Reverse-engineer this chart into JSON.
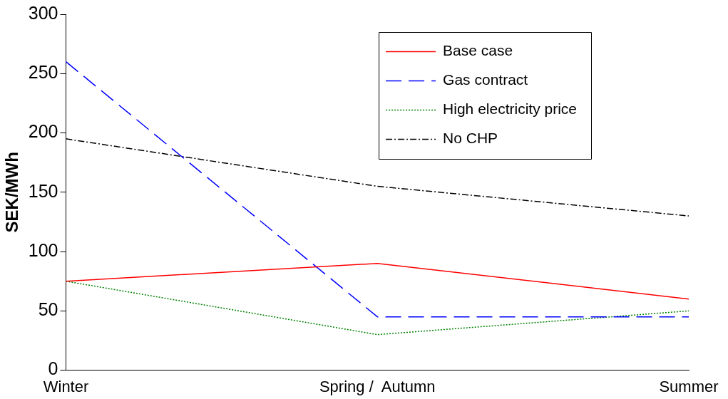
{
  "chart_data": {
    "type": "line",
    "ylabel": "SEK/MWh",
    "categories": [
      "Winter",
      "Spring /  Autumn",
      "Summer"
    ],
    "series": [
      {
        "name": "Base case",
        "color": "#ff0000",
        "line_style": "solid",
        "values": [
          75,
          90,
          60
        ]
      },
      {
        "name": "Gas contract",
        "color": "#0000ff",
        "line_style": "dashed",
        "values": [
          260,
          45,
          45
        ]
      },
      {
        "name": "High electricity price",
        "color": "#008000",
        "line_style": "dotted",
        "values": [
          75,
          30,
          50
        ]
      },
      {
        "name": "No CHP",
        "color": "#000000",
        "line_style": "dashdot",
        "values": [
          195,
          155,
          130
        ]
      }
    ],
    "ylim": [
      0,
      300
    ],
    "yticks": [
      0,
      50,
      100,
      150,
      200,
      250,
      300
    ],
    "grid": false,
    "legend": "top right",
    "marker": "none"
  }
}
